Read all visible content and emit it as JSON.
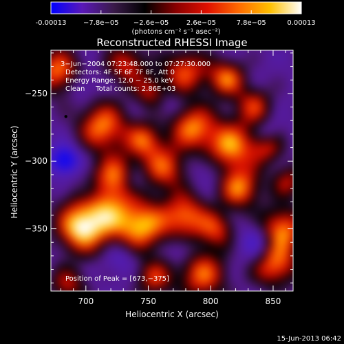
{
  "colorbar": {
    "tick_labels": [
      "-0.00013",
      "−7.8e−05",
      "−2.6e−05",
      "2.6e−05",
      "7.8e−05",
      "0.00013"
    ],
    "ticks": [
      -0.00013,
      -7.8e-05,
      -2.6e-05,
      2.6e-05,
      7.8e-05,
      0.00013
    ],
    "range": [
      -0.00013,
      0.00013
    ],
    "unit_label": "(photons cm⁻² s⁻¹ asec⁻²)",
    "colors": [
      "#0000ff",
      "#5a18b8",
      "#3a1a4a",
      "#000000",
      "#8a0000",
      "#e01000",
      "#ff6a00",
      "#ffc000",
      "#ffffff"
    ]
  },
  "chart_data": {
    "type": "heatmap",
    "title": "Reconstructed RHESSI Image",
    "xlabel": "Heliocentric X (arcsec)",
    "ylabel": "Heliocentric Y (arcsec)",
    "xlim": [
      672,
      866
    ],
    "ylim": [
      -396,
      -218
    ],
    "x_ticks": [
      700,
      750,
      800,
      850
    ],
    "y_ticks": [
      -250,
      -300,
      -350
    ],
    "annotations": [
      "3−Jun−2004 07:23:48.000 to 07:27:30.000",
      "Detectors: 4F 5F 6F 7F 8F, Att 0",
      "Energy Range: 12.0 − 25.0 keV",
      "Clean     Total counts: 2.86E+03"
    ],
    "peak_label": "Position of Peak = [673,−375]",
    "peak": [
      673,
      -375
    ],
    "marker": [
      684,
      -267
    ]
  },
  "footer": {
    "date": "15-Jun-2013 06:42"
  }
}
